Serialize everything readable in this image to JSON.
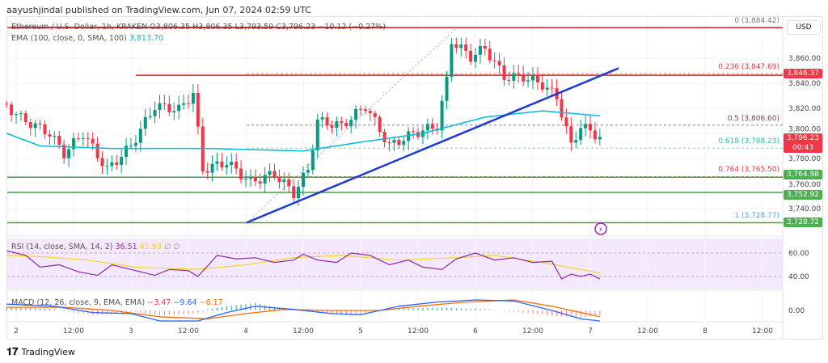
{
  "header": "aayushjindal published on TradingView.com, Jun 07, 2024 02:59 UTC",
  "legend": {
    "symbol": "Ethereum / U.S. Dollar, 1h, KRAKEN",
    "o": "O3,806.35",
    "h": "H3,806.35",
    "l": "L3,793.59",
    "c": "C3,796.23",
    "chg": "−10.12 (−0.27%)",
    "ema_label": "EMA (100, close, 0, SMA, 100)",
    "ema_value": "3,813.70"
  },
  "currency": "USD",
  "price_axis": [
    "3,860.00",
    "3,840.00",
    "3,820.00",
    "3,800.00",
    "3,780.00",
    "3,760.00",
    "3,740.00"
  ],
  "price_ticks": [
    3860,
    3840,
    3820,
    3800,
    3780,
    3760,
    3740
  ],
  "tags": [
    {
      "label": "3,846.37",
      "price": 3846.37,
      "color": "#f23645"
    },
    {
      "label": "3,796.23",
      "sub": "00:43",
      "price": 3796.23,
      "color": "#f23645"
    },
    {
      "label": "3,764.98",
      "price": 3764.98,
      "color": "#4caf50"
    },
    {
      "label": "3,752.92",
      "price": 3752.92,
      "color": "#4caf50"
    },
    {
      "label": "3,728.72",
      "price": 3728.72,
      "color": "#4caf50"
    }
  ],
  "fib": [
    {
      "label": "0 (3,884.42)",
      "price": 3884.42,
      "color": "#787b86"
    },
    {
      "label": "0.236 (3,847.69)",
      "price": 3847.69,
      "color": "#f23645"
    },
    {
      "label": "0.5 (3,806.60)",
      "price": 3806.6,
      "color": "#7b3f4f"
    },
    {
      "label": "0.618 (3,788.23)",
      "price": 3788.23,
      "color": "#26c6a0"
    },
    {
      "label": "0.764 (3,765.50)",
      "price": 3765.5,
      "color": "#f23645"
    },
    {
      "label": "1 (3,728.77)",
      "price": 3728.77,
      "color": "#4fa8d8"
    }
  ],
  "time_axis": [
    "2",
    "12:00",
    "3",
    "12:00",
    "4",
    "12:00",
    "5",
    "12:00",
    "6",
    "12:00",
    "7",
    "12:00",
    "8",
    "12:00"
  ],
  "rsi": {
    "label": "RSI (14, close, SMA, 14, 2)",
    "v1": "36.51",
    "v2": "41.93",
    "ticks": [
      "60.00",
      "40.00"
    ],
    "line": [
      [
        -2,
        62
      ],
      [
        2,
        58
      ],
      [
        5,
        48
      ],
      [
        9,
        50
      ],
      [
        13,
        44
      ],
      [
        17,
        41
      ],
      [
        20,
        50
      ],
      [
        24,
        46
      ],
      [
        29,
        41
      ],
      [
        32,
        46
      ],
      [
        36,
        45
      ],
      [
        38,
        40
      ],
      [
        42,
        58
      ],
      [
        46,
        55
      ],
      [
        50,
        56
      ],
      [
        54,
        52
      ],
      [
        58,
        54
      ],
      [
        60,
        59
      ],
      [
        63,
        54
      ],
      [
        67,
        52
      ],
      [
        70,
        60
      ],
      [
        74,
        58
      ],
      [
        78,
        50
      ],
      [
        82,
        54
      ],
      [
        85,
        48
      ],
      [
        89,
        46
      ],
      [
        92,
        55
      ],
      [
        96,
        60
      ],
      [
        100,
        54
      ],
      [
        104,
        56
      ],
      [
        108,
        52
      ],
      [
        112,
        53
      ],
      [
        114,
        38
      ],
      [
        116,
        42
      ],
      [
        118,
        40
      ],
      [
        120,
        42
      ],
      [
        122,
        38
      ]
    ],
    "sma": [
      [
        -2,
        58
      ],
      [
        5,
        57
      ],
      [
        15,
        54
      ],
      [
        25,
        48
      ],
      [
        38,
        46
      ],
      [
        48,
        50
      ],
      [
        58,
        56
      ],
      [
        68,
        58
      ],
      [
        80,
        54
      ],
      [
        92,
        56
      ],
      [
        100,
        58
      ],
      [
        110,
        52
      ],
      [
        122,
        43
      ]
    ]
  },
  "macd": {
    "label": "MACD (12, 26, close, 9, EMA, EMA)",
    "v1": "−3.47",
    "v2": "−9.64",
    "v3": "−6.17",
    "tick": "0.00",
    "macd": [
      [
        -2,
        6
      ],
      [
        8,
        4
      ],
      [
        16,
        -2
      ],
      [
        24,
        -3
      ],
      [
        30,
        -10
      ],
      [
        38,
        -10
      ],
      [
        44,
        -2
      ],
      [
        50,
        4
      ],
      [
        58,
        1
      ],
      [
        66,
        -3
      ],
      [
        72,
        -4
      ],
      [
        80,
        4
      ],
      [
        88,
        8
      ],
      [
        96,
        10
      ],
      [
        104,
        9
      ],
      [
        112,
        0
      ],
      [
        118,
        -8
      ],
      [
        122,
        -10
      ]
    ],
    "signal": [
      [
        -2,
        3
      ],
      [
        10,
        3
      ],
      [
        20,
        0
      ],
      [
        30,
        -6
      ],
      [
        40,
        -8
      ],
      [
        48,
        -3
      ],
      [
        56,
        1
      ],
      [
        66,
        0
      ],
      [
        76,
        0
      ],
      [
        84,
        4
      ],
      [
        94,
        8
      ],
      [
        104,
        10
      ],
      [
        112,
        4
      ],
      [
        122,
        -6
      ]
    ]
  },
  "chart_data": {
    "type": "candlestick",
    "start_hour": -2,
    "path": [
      [
        -2,
        3822
      ],
      [
        1,
        3812
      ],
      [
        7,
        3800
      ],
      [
        10,
        3784
      ],
      [
        14,
        3800
      ],
      [
        19,
        3771
      ],
      [
        24,
        3790
      ],
      [
        29,
        3822
      ],
      [
        34,
        3819
      ],
      [
        37,
        3832
      ],
      [
        39,
        3771
      ],
      [
        44,
        3777
      ],
      [
        49,
        3761
      ],
      [
        54,
        3768
      ],
      [
        58,
        3752
      ],
      [
        61,
        3771
      ],
      [
        63,
        3810
      ],
      [
        68,
        3806
      ],
      [
        73,
        3822
      ],
      [
        78,
        3790
      ],
      [
        83,
        3800
      ],
      [
        88,
        3806
      ],
      [
        90,
        3842
      ],
      [
        91,
        3874
      ],
      [
        95,
        3861
      ],
      [
        98,
        3868
      ],
      [
        102,
        3845
      ],
      [
        106,
        3845
      ],
      [
        110,
        3839
      ],
      [
        113,
        3829
      ],
      [
        116,
        3790
      ],
      [
        118,
        3806
      ],
      [
        122,
        3797
      ]
    ],
    "ema": [
      [
        -2,
        3800
      ],
      [
        5,
        3790
      ],
      [
        20,
        3788
      ],
      [
        40,
        3788
      ],
      [
        60,
        3786
      ],
      [
        72,
        3793
      ],
      [
        85,
        3800
      ],
      [
        98,
        3813
      ],
      [
        110,
        3818
      ],
      [
        122,
        3814
      ]
    ]
  },
  "footer": "TradingView"
}
